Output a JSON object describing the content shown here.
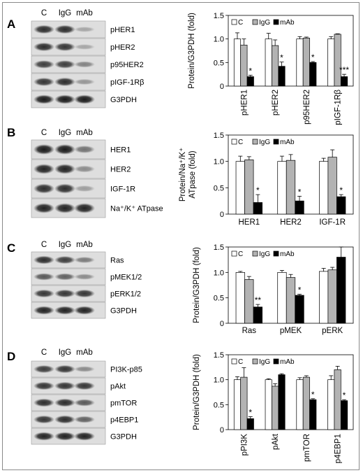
{
  "panels": [
    {
      "letter": "A",
      "lanes": [
        "C",
        "IgG",
        "mAb"
      ],
      "bands": [
        {
          "label": "pHER1",
          "sig": [
            0.85,
            0.85,
            0.15
          ]
        },
        {
          "label": "pHER2",
          "sig": [
            0.85,
            0.8,
            0.15
          ]
        },
        {
          "label": "p95HER2",
          "sig": [
            0.75,
            0.75,
            0.35
          ]
        },
        {
          "label": "pIGF-1Rβ",
          "sig": [
            0.8,
            0.85,
            0.25
          ]
        },
        {
          "label": "G3PDH",
          "sig": [
            0.95,
            0.95,
            0.95
          ]
        }
      ]
    },
    {
      "letter": "B",
      "lanes": [
        "C",
        "IgG",
        "mAb"
      ],
      "bands": [
        {
          "label": "HER1",
          "sig": [
            0.95,
            0.95,
            0.45
          ]
        },
        {
          "label": "HER2",
          "sig": [
            0.9,
            0.9,
            0.3
          ]
        },
        {
          "label": "IGF-1R",
          "sig": [
            0.85,
            0.85,
            0.2
          ]
        },
        {
          "label": "Na⁺/K⁺ ATpase",
          "sig": [
            0.9,
            0.9,
            0.9
          ]
        }
      ]
    },
    {
      "letter": "C",
      "lanes": [
        "C",
        "IgG",
        "mAb"
      ],
      "bands": [
        {
          "label": "Ras",
          "sig": [
            0.85,
            0.75,
            0.4
          ]
        },
        {
          "label": "pMEK1/2",
          "sig": [
            0.6,
            0.55,
            0.3
          ]
        },
        {
          "label": "pERK1/2",
          "sig": [
            0.8,
            0.8,
            0.8
          ]
        },
        {
          "label": "G3PDH",
          "sig": [
            0.9,
            0.9,
            0.9
          ]
        }
      ]
    },
    {
      "letter": "D",
      "lanes": [
        "C",
        "IgG",
        "mAb"
      ],
      "bands": [
        {
          "label": "PI3K-p85",
          "sig": [
            0.75,
            0.8,
            0.3
          ]
        },
        {
          "label": "pAkt",
          "sig": [
            0.8,
            0.8,
            0.8
          ]
        },
        {
          "label": "pmTOR",
          "sig": [
            0.85,
            0.85,
            0.6
          ]
        },
        {
          "label": "p4EBP1",
          "sig": [
            0.8,
            0.85,
            0.55
          ]
        },
        {
          "label": "G3PDH",
          "sig": [
            0.9,
            0.9,
            0.9
          ]
        }
      ]
    }
  ],
  "colors": {
    "C": "#ffffff",
    "IgG": "#b3b3b3",
    "mAb": "#000000",
    "frame": "#8a8a8a"
  },
  "chart_data": [
    {
      "type": "bar",
      "ylabel": "Protein/G3PDH (fold)",
      "ylim": [
        0,
        1.5
      ],
      "yticks": [
        "0",
        "0.5",
        "1.0",
        "1.5"
      ],
      "categories": [
        "pHER1",
        "pHER2",
        "p95HER2",
        "pIGF-1Rβ"
      ],
      "rotated_labels": true,
      "legend": "top-left",
      "series": [
        {
          "name": "C",
          "values": [
            1.0,
            1.0,
            1.0,
            1.0
          ],
          "err": [
            0.13,
            0.12,
            0.05,
            0.05
          ]
        },
        {
          "name": "IgG",
          "values": [
            0.87,
            0.86,
            1.02,
            1.1
          ],
          "err": [
            0.13,
            0.12,
            0.02,
            0.01
          ]
        },
        {
          "name": "mAb",
          "values": [
            0.2,
            0.42,
            0.5,
            0.2
          ],
          "err": [
            0.03,
            0.09,
            0.02,
            0.05
          ]
        }
      ],
      "annotations": [
        "*",
        "*",
        "*",
        "***"
      ]
    },
    {
      "type": "bar",
      "ylabel": "Protein/Na⁺/K⁺ ATpase (fold)",
      "ylim": [
        0,
        1.5
      ],
      "yticks": [
        "0",
        "0.5",
        "1.0",
        "1.5"
      ],
      "categories": [
        "HER1",
        "HER2",
        "IGF-1R"
      ],
      "rotated_labels": false,
      "legend": "top-left",
      "series": [
        {
          "name": "C",
          "values": [
            1.0,
            1.0,
            1.0
          ],
          "err": [
            0.1,
            0.1,
            0.06
          ]
        },
        {
          "name": "IgG",
          "values": [
            1.03,
            1.02,
            1.08
          ],
          "err": [
            0.06,
            0.11,
            0.14
          ]
        },
        {
          "name": "mAb",
          "values": [
            0.22,
            0.25,
            0.33
          ],
          "err": [
            0.15,
            0.09,
            0.04
          ]
        }
      ],
      "annotations": [
        "*",
        "*",
        "*"
      ]
    },
    {
      "type": "bar",
      "ylabel": "Protein/G3PDH (fold)",
      "ylim": [
        0,
        1.5
      ],
      "yticks": [
        "0",
        "0.5",
        "1.0",
        "1.5"
      ],
      "categories": [
        "Ras",
        "pMEK",
        "pERK"
      ],
      "rotated_labels": false,
      "legend": "top-left",
      "series": [
        {
          "name": "C",
          "values": [
            1.0,
            1.0,
            1.02
          ],
          "err": [
            0.02,
            0.04,
            0.06
          ]
        },
        {
          "name": "IgG",
          "values": [
            0.86,
            0.9,
            1.05
          ],
          "err": [
            0.06,
            0.06,
            0.05
          ]
        },
        {
          "name": "mAb",
          "values": [
            0.32,
            0.55,
            1.3
          ],
          "err": [
            0.05,
            0.02,
            0.2
          ]
        }
      ],
      "annotations": [
        "**",
        "*",
        ""
      ]
    },
    {
      "type": "bar",
      "ylabel": "Protein/G3PDH (fold)",
      "ylim": [
        0,
        1.5
      ],
      "yticks": [
        "0",
        "0.5",
        "1.0",
        "1.5"
      ],
      "categories": [
        "pPI3K",
        "pAkt",
        "pmTOR",
        "p4EBP1"
      ],
      "rotated_labels": true,
      "legend": "top-left",
      "series": [
        {
          "name": "C",
          "values": [
            1.0,
            1.0,
            1.0,
            1.0
          ],
          "err": [
            0.06,
            0.02,
            0.04,
            0.08
          ]
        },
        {
          "name": "IgG",
          "values": [
            1.05,
            0.87,
            1.05,
            1.2
          ],
          "err": [
            0.19,
            0.05,
            0.03,
            0.07
          ]
        },
        {
          "name": "mAb",
          "values": [
            0.22,
            1.1,
            0.6,
            0.58
          ],
          "err": [
            0.04,
            0.02,
            0.02,
            0.02
          ]
        }
      ],
      "annotations": [
        "*",
        "",
        "*",
        "*"
      ]
    }
  ]
}
